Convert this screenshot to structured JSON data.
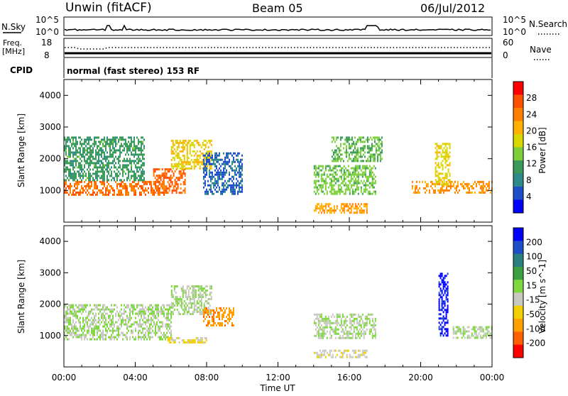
{
  "header": {
    "station": "Unwin (fitACF)",
    "beam": "Beam 05",
    "date": "06/Jul/2012"
  },
  "top_panels": {
    "nsky_label": "N.Sky",
    "nsearch_label": "N.Search",
    "nsky_ticks": [
      "10^5",
      "10^0"
    ],
    "nsearch_ticks": [
      "10^5",
      "10^0"
    ],
    "freq_label_1": "Freq.",
    "freq_label_2": "[MHz]",
    "freq_ticks": [
      "18",
      "8"
    ],
    "nave_label": "Nave",
    "nave_ticks": [
      "60",
      "0"
    ],
    "cpid_label": "CPID",
    "cpid_text": "normal (fast stereo) 153 RF"
  },
  "colors": {
    "power_scale": [
      "#0000ff",
      "#1f4fc8",
      "#2e8a8a",
      "#3a9a5a",
      "#7ccf3a",
      "#d8d800",
      "#ffb000",
      "#ff8000",
      "#ff5000",
      "#ff0000"
    ],
    "velocity_scale": [
      "#0000ff",
      "#1f4fc8",
      "#2a7f7f",
      "#3aa040",
      "#7fd83f",
      "#c8c8c0",
      "#f0d000",
      "#ffa000",
      "#ff6000",
      "#ff0000"
    ],
    "ground_scatter": "#c8c8c0"
  },
  "chart_data": [
    {
      "type": "heatmap",
      "name": "Power",
      "xlabel": "",
      "ylabel": "Slant Range [km]",
      "yticks": [
        "1000",
        "2000",
        "3000",
        "4000"
      ],
      "ylim": [
        0,
        4500
      ],
      "colorbar_label": "Power [dB]",
      "colorbar_ticks": [
        "28",
        "24",
        "20",
        "16",
        "12",
        "8",
        "4"
      ],
      "colorbar_range": [
        0,
        32
      ],
      "bands": [
        {
          "t": [
            0.0,
            5.6
          ],
          "r": [
            850,
            1300
          ],
          "v": 25
        },
        {
          "t": [
            5.0,
            6.8
          ],
          "r": [
            950,
            1700
          ],
          "v": 26
        },
        {
          "t": [
            6.0,
            8.3
          ],
          "r": [
            1700,
            2600
          ],
          "v": 19
        },
        {
          "t": [
            0.0,
            4.5
          ],
          "r": [
            1300,
            2700
          ],
          "v": 11
        },
        {
          "t": [
            7.8,
            10.0
          ],
          "r": [
            900,
            2200
          ],
          "v": 6
        },
        {
          "t": [
            14.0,
            17.5
          ],
          "r": [
            900,
            1800
          ],
          "v": 14
        },
        {
          "t": [
            14.0,
            17.0
          ],
          "r": [
            300,
            600
          ],
          "v": 22
        },
        {
          "t": [
            15.0,
            17.8
          ],
          "r": [
            1900,
            2700
          ],
          "v": 13
        },
        {
          "t": [
            19.5,
            24.0
          ],
          "r": [
            900,
            1300
          ],
          "v": 23
        },
        {
          "t": [
            20.8,
            21.6
          ],
          "r": [
            1200,
            2500
          ],
          "v": 18
        }
      ]
    },
    {
      "type": "heatmap",
      "name": "Velocity",
      "xlabel": "Time UT",
      "ylabel": "Slant Range [km]",
      "xticks": [
        "00:00",
        "04:00",
        "08:00",
        "12:00",
        "16:00",
        "20:00",
        "00:00"
      ],
      "xlim": [
        0,
        24
      ],
      "yticks": [
        "1000",
        "2000",
        "3000",
        "4000"
      ],
      "ylim": [
        0,
        4500
      ],
      "colorbar_label": "Velocity [m s^-1]",
      "colorbar_ticks": [
        "200",
        "100",
        "50",
        "15",
        "-15",
        "-50",
        "-100",
        "-200"
      ],
      "colorbar_range": [
        -250,
        250
      ],
      "bands": [
        {
          "t": [
            0.0,
            6.0
          ],
          "r": [
            850,
            2000
          ],
          "v": 0
        },
        {
          "t": [
            6.0,
            8.3
          ],
          "r": [
            1700,
            2600
          ],
          "v": 0
        },
        {
          "t": [
            7.8,
            9.5
          ],
          "r": [
            1300,
            1900
          ],
          "v": -130
        },
        {
          "t": [
            5.8,
            8.0
          ],
          "r": [
            750,
            950
          ],
          "v": -60
        },
        {
          "t": [
            14.0,
            17.5
          ],
          "r": [
            900,
            1700
          ],
          "v": 0
        },
        {
          "t": [
            14.0,
            17.0
          ],
          "r": [
            300,
            550
          ],
          "v": -40
        },
        {
          "t": [
            21.0,
            21.5
          ],
          "r": [
            1000,
            3000
          ],
          "v": 220
        },
        {
          "t": [
            21.8,
            24.0
          ],
          "r": [
            950,
            1300
          ],
          "v": 0
        }
      ]
    }
  ]
}
